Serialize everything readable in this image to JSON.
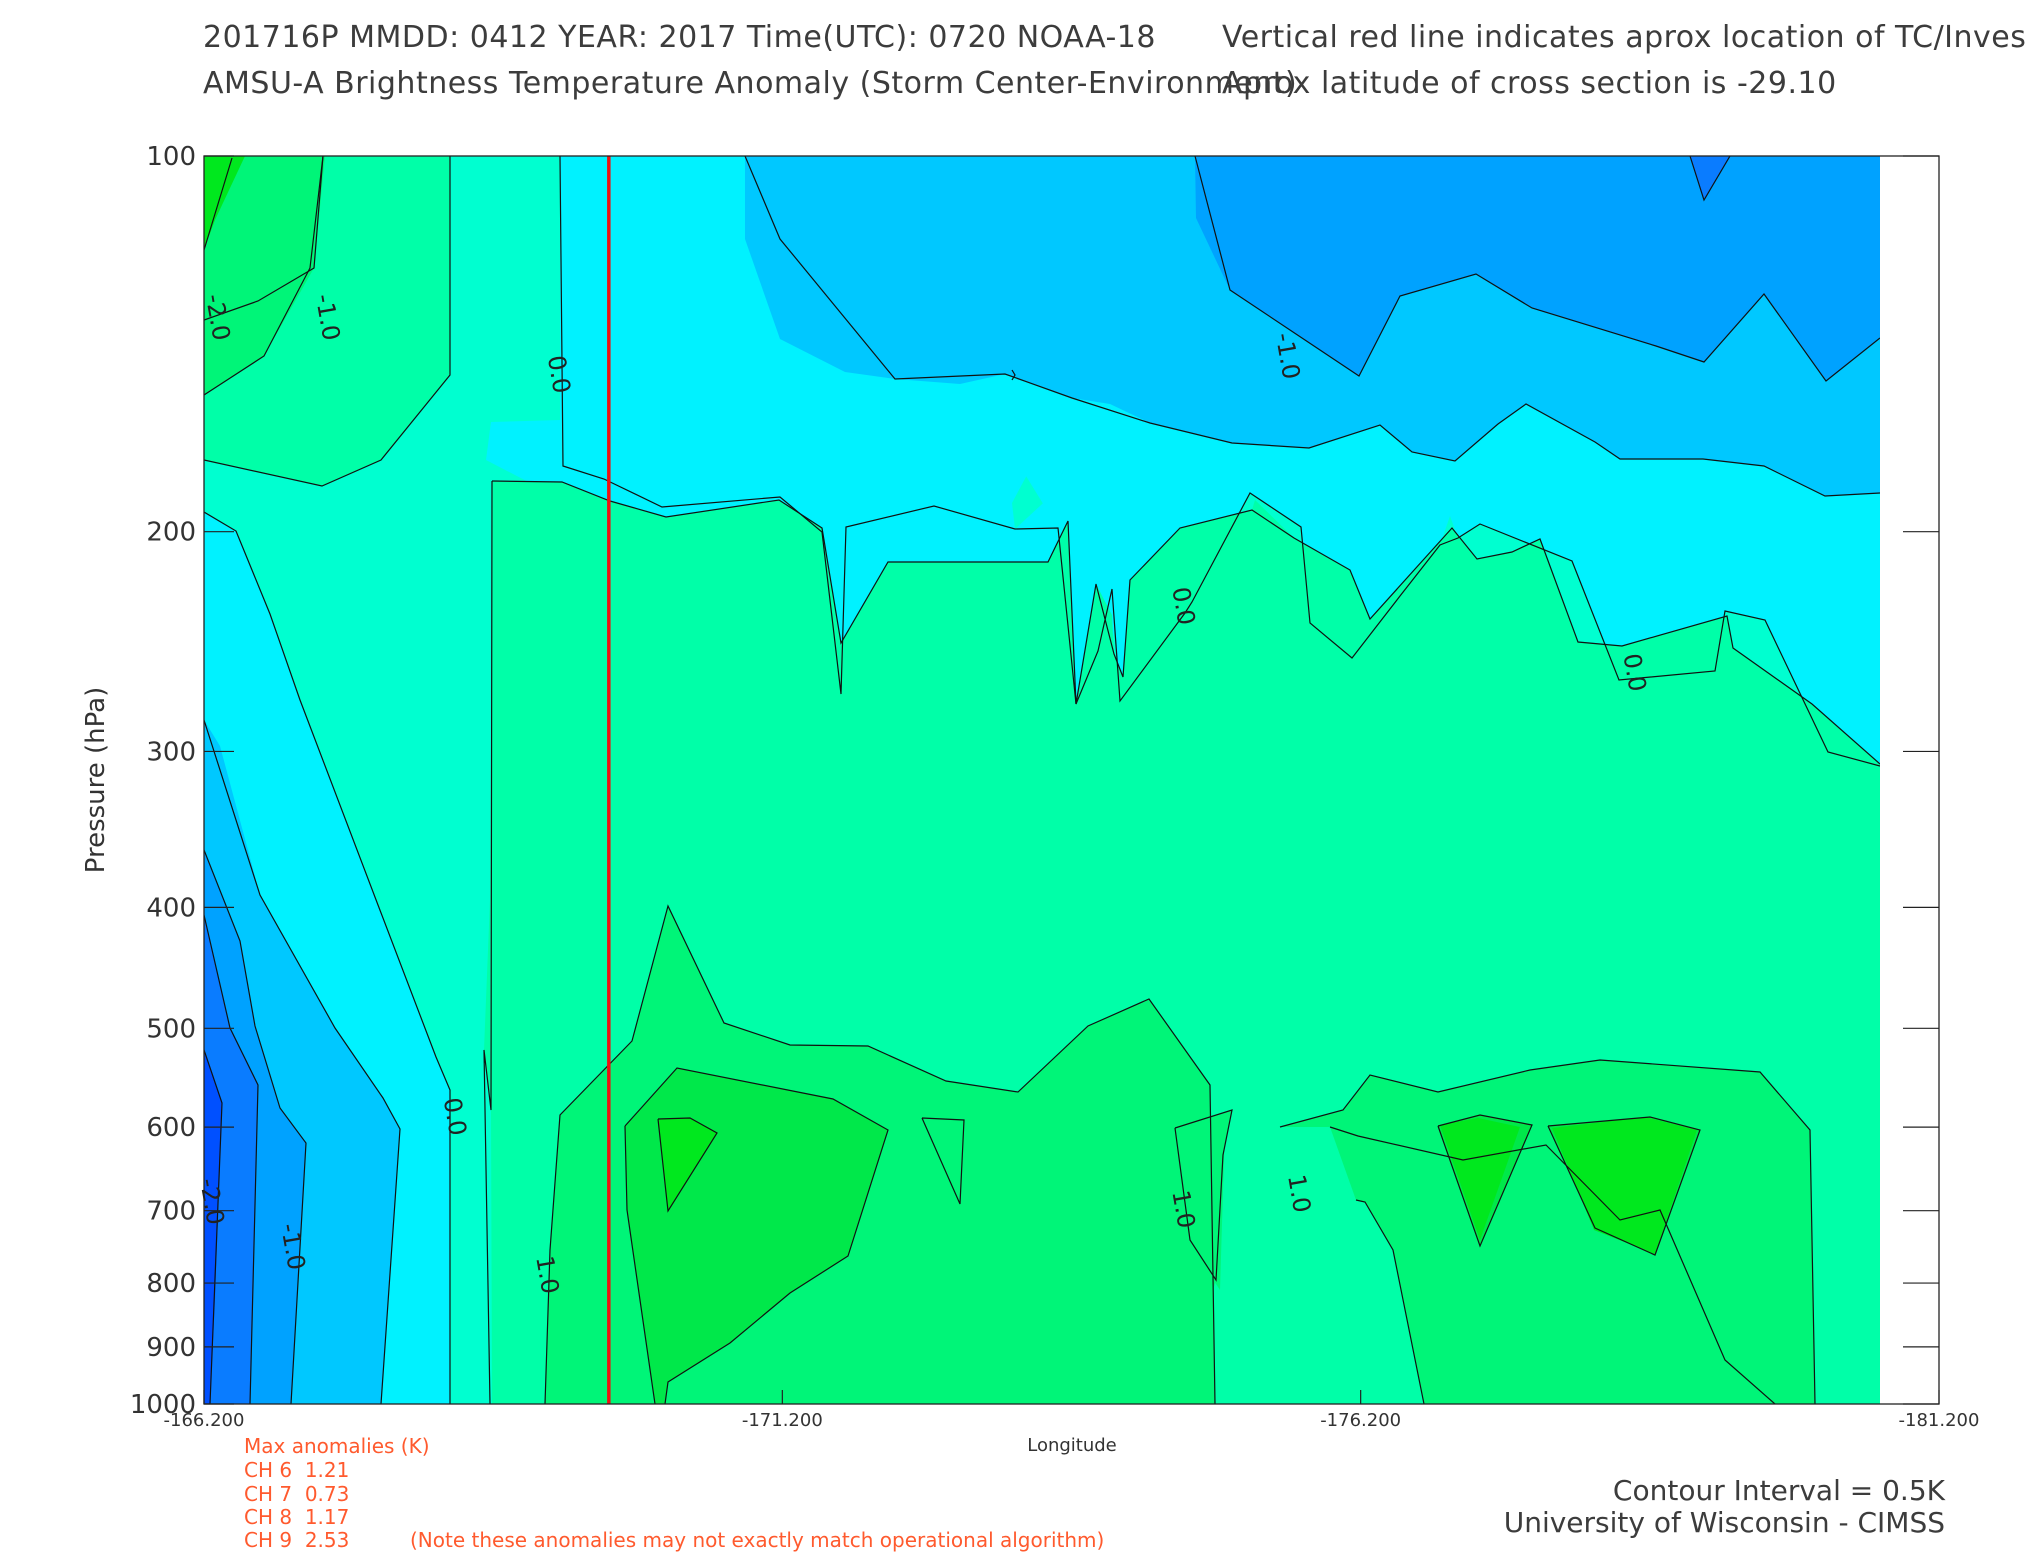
{
  "header": {
    "line1_left": "201716P  MMDD: 0412 YEAR: 2017 Time(UTC): 0720 NOAA-18",
    "line2_left": "AMSU-A Brightness Temperature Anomaly (Storm Center-Environment)",
    "line1_right": "Vertical red line indicates aprox location of TC/Invest",
    "line2_right": "Aprox latitude of cross section is -29.10"
  },
  "chart_data": {
    "type": "heatmap",
    "title": "AMSU-A Brightness Temperature Anomaly (Storm Center-Environment)",
    "xlabel": "Longitude",
    "ylabel": "Pressure (hPa)",
    "xlim": [
      -166.2,
      -181.2
    ],
    "ylim": [
      1000,
      100
    ],
    "y_scale": "log",
    "x_ticks": [
      "-166.200",
      "-171.200",
      "-176.200",
      "-181.200"
    ],
    "y_ticks": [
      "100",
      "200",
      "300",
      "400",
      "500",
      "600",
      "700",
      "800",
      "900",
      "1000"
    ],
    "contour_interval": 0.5,
    "tc_longitude": -169.7,
    "contour_labels": [
      {
        "text": "-2.0",
        "lon": -166.25,
        "p": 135
      },
      {
        "text": "-1.0",
        "lon": -167.2,
        "p": 135
      },
      {
        "text": "0.0",
        "lon": -169.2,
        "p": 150
      },
      {
        "text": "-1.0",
        "lon": -175.5,
        "p": 145
      },
      {
        "text": "0.0",
        "lon": -174.6,
        "p": 230
      },
      {
        "text": "0.0",
        "lon": -178.5,
        "p": 260
      },
      {
        "text": "0.0",
        "lon": -168.3,
        "p": 590
      },
      {
        "text": "-2.0",
        "lon": -166.2,
        "p": 690
      },
      {
        "text": "-1.0",
        "lon": -166.9,
        "p": 750
      },
      {
        "text": "1.0",
        "lon": -169.1,
        "p": 790
      },
      {
        "text": "1.0",
        "lon": -174.6,
        "p": 700
      },
      {
        "text": "1.0",
        "lon": -175.6,
        "p": 680
      }
    ]
  },
  "anomalies": {
    "title": "Max anomalies (K)",
    "rows": [
      {
        "ch": "CH 6",
        "val": "1.21"
      },
      {
        "ch": "CH 7",
        "val": "0.73"
      },
      {
        "ch": "CH 8",
        "val": "1.17"
      },
      {
        "ch": "CH 9",
        "val": "2.53"
      }
    ],
    "note": "(Note these anomalies may not exactly match operational algorithm)"
  },
  "footer": {
    "interval": "Contour Interval = 0.5K",
    "credit": "University of Wisconsin - CIMSS"
  },
  "colors": {
    "tc_line": "#ee1111",
    "anomaly_text": "#ff5a2e",
    "bands": {
      "minus3": "#0050ff",
      "minus2": "#0a7cff",
      "minus1_5": "#00a2ff",
      "minus1": "#00c8ff",
      "minus0_5": "#00f2ff",
      "zero": "#00ffd0",
      "plus0_5": "#00ffa8",
      "plus1": "#00f578",
      "plus1_5": "#00e84a",
      "plus2": "#00e81e"
    }
  }
}
